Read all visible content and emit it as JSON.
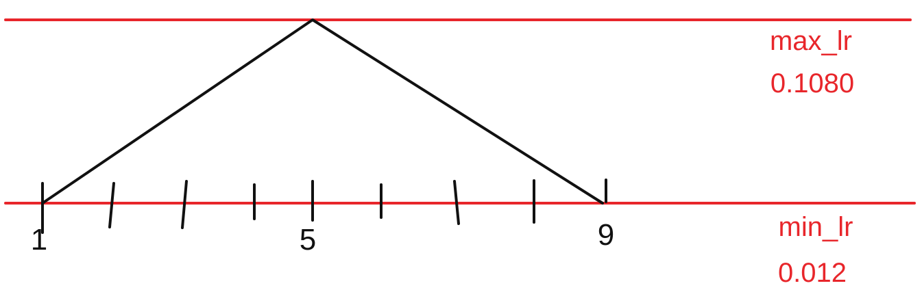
{
  "colors": {
    "bound_lines": "#e8262b",
    "schedule_line": "#111111",
    "ticks": "#111111",
    "tick_labels": "#111111",
    "lr_text": "#e8262b"
  },
  "max_lr": {
    "name": "max_lr",
    "value": "0.1080"
  },
  "min_lr": {
    "name": "min_lr",
    "value": "0.012"
  },
  "axis": {
    "ticks": [
      1,
      2,
      3,
      4,
      5,
      6,
      7,
      8,
      9
    ],
    "labels": [
      {
        "tick": 1,
        "text": "1"
      },
      {
        "tick": 5,
        "text": "5"
      },
      {
        "tick": 9,
        "text": "9"
      }
    ]
  },
  "schedule": {
    "type": "triangular",
    "points": [
      {
        "tick": 1,
        "level": "min_lr"
      },
      {
        "tick": 5,
        "level": "max_lr"
      },
      {
        "tick": 9,
        "level": "min_lr"
      }
    ]
  }
}
